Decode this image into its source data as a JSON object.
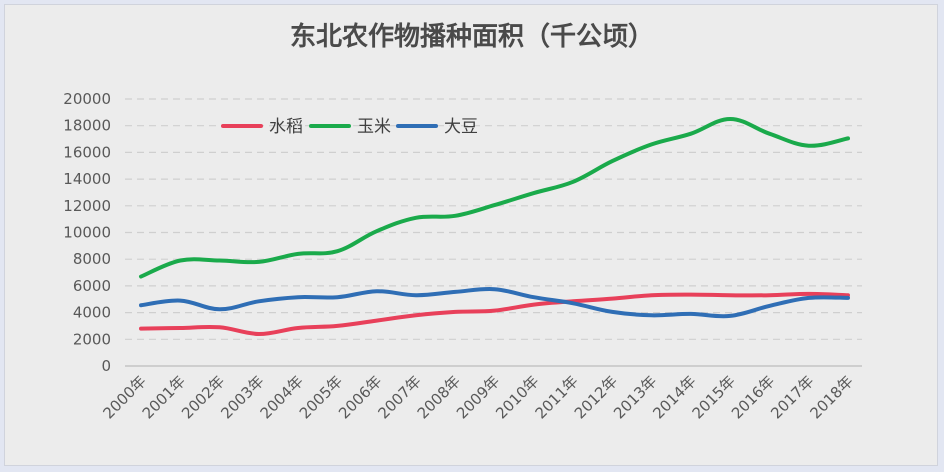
{
  "chart_data": {
    "type": "line",
    "title": "东北农作物播种面积（千公顷）",
    "categories": [
      "2000年",
      "2001年",
      "2002年",
      "2003年",
      "2004年",
      "2005年",
      "2006年",
      "2007年",
      "2008年",
      "2009年",
      "2010年",
      "2011年",
      "2012年",
      "2013年",
      "2014年",
      "2015年",
      "2016年",
      "2017年",
      "2018年"
    ],
    "ylim": [
      0,
      20000
    ],
    "yticks": [
      0,
      2000,
      4000,
      6000,
      8000,
      10000,
      12000,
      14000,
      16000,
      18000,
      20000
    ],
    "grid": true,
    "legend": "top-left",
    "series": [
      {
        "name": "水稻",
        "color": "#e8405a",
        "values": [
          2800,
          2850,
          2900,
          2400,
          2850,
          3000,
          3400,
          3800,
          4050,
          4150,
          4600,
          4850,
          5050,
          5300,
          5350,
          5300,
          5300,
          5400,
          5300
        ]
      },
      {
        "name": "玉米",
        "color": "#1aaa4b",
        "values": [
          6700,
          7900,
          7900,
          7800,
          8400,
          8600,
          10100,
          11100,
          11250,
          12050,
          12950,
          13800,
          15350,
          16600,
          17400,
          18500,
          17400,
          16500,
          17050
        ]
      },
      {
        "name": "大豆",
        "color": "#2f6eb5",
        "values": [
          4550,
          4900,
          4250,
          4850,
          5150,
          5150,
          5600,
          5300,
          5550,
          5750,
          5150,
          4700,
          4050,
          3800,
          3900,
          3750,
          4500,
          5100,
          5100
        ]
      }
    ]
  }
}
